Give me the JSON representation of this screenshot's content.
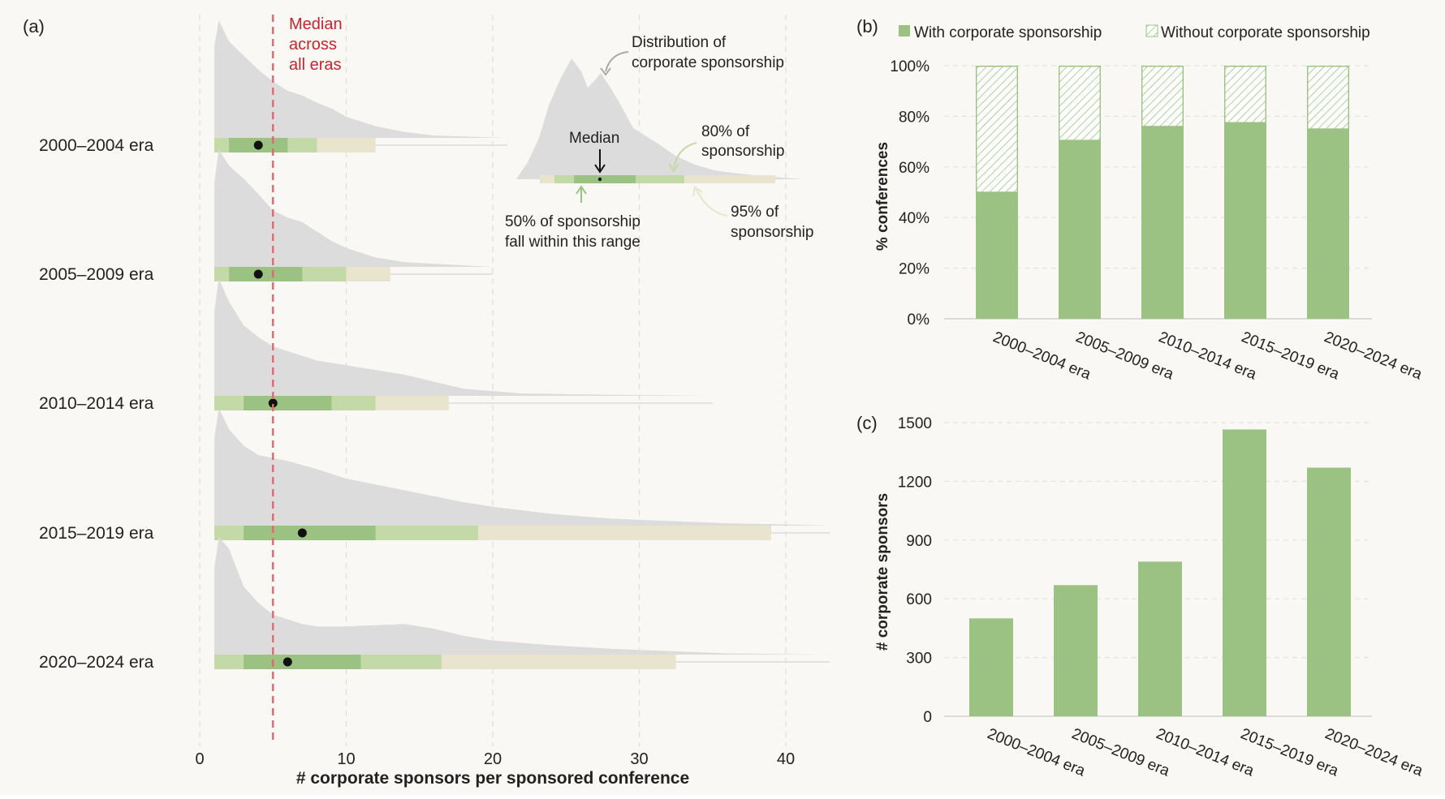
{
  "colors": {
    "background": "#f9f8f5",
    "range50": "#9cc283",
    "range80": "#c3d9a8",
    "range95": "#e9e4cd",
    "density": "#dcdcdc",
    "median_line": "#e8666b",
    "median_text": "#c8242b",
    "bar": "#9cc283",
    "hatch": "#9cc283"
  },
  "chart_data": [
    {
      "panel": "(a)",
      "type": "area",
      "xlabel": "# corporate sponsors per sponsored conference",
      "ylabel": "",
      "xlim": [
        0,
        42
      ],
      "xticks": [
        "0",
        "10",
        "20",
        "30",
        "40"
      ],
      "grid": "vertical dashed",
      "median_line": {
        "x": 5,
        "label_lines": [
          "Median",
          "across",
          "all eras"
        ]
      },
      "legend_inset": {
        "distribution_label": [
          "Distribution of",
          "corporate sponsorship"
        ],
        "median_label": "Median",
        "range80_label": [
          "80% of",
          "sponsorship"
        ],
        "range50_label": [
          "50% of sponsorship",
          "fall within this range"
        ],
        "range95_label": [
          "95% of",
          "sponsorship"
        ]
      },
      "series": [
        {
          "name": "2000–2004 era",
          "median": 4,
          "range50": [
            2,
            6
          ],
          "range80": [
            1,
            8
          ],
          "range95": [
            1,
            12
          ],
          "density_x": [
            1,
            1.3,
            2,
            3,
            4,
            5,
            6,
            7,
            8,
            9,
            10,
            12,
            14,
            16,
            21
          ],
          "density_y": [
            0.78,
            1.0,
            0.82,
            0.7,
            0.58,
            0.48,
            0.4,
            0.36,
            0.3,
            0.25,
            0.18,
            0.1,
            0.05,
            0.02,
            0.0
          ]
        },
        {
          "name": "2005–2009 era",
          "median": 4,
          "range50": [
            2,
            7
          ],
          "range80": [
            1,
            10
          ],
          "range95": [
            1,
            13
          ],
          "density_x": [
            1,
            1.3,
            2,
            3,
            4,
            5,
            6,
            7,
            8,
            9,
            10,
            12,
            14,
            17,
            20
          ],
          "density_y": [
            0.72,
            1.0,
            0.86,
            0.75,
            0.62,
            0.48,
            0.42,
            0.38,
            0.3,
            0.22,
            0.16,
            0.08,
            0.04,
            0.02,
            0.0
          ]
        },
        {
          "name": "2010–2014 era",
          "median": 5,
          "range50": [
            3,
            9
          ],
          "range80": [
            1,
            12
          ],
          "range95": [
            1,
            17
          ],
          "density_x": [
            1,
            1.3,
            2,
            3,
            4,
            5,
            6,
            7,
            8,
            9,
            10,
            12,
            14,
            16,
            18,
            22,
            28,
            35
          ],
          "density_y": [
            0.72,
            1.0,
            0.8,
            0.6,
            0.5,
            0.42,
            0.38,
            0.34,
            0.3,
            0.28,
            0.26,
            0.22,
            0.18,
            0.12,
            0.06,
            0.02,
            0.01,
            0.0
          ]
        },
        {
          "name": "2015–2019 era",
          "median": 7,
          "range50": [
            3,
            12
          ],
          "range80": [
            1,
            19
          ],
          "range95": [
            1,
            39
          ],
          "density_x": [
            1,
            1.3,
            2,
            3,
            4,
            6,
            8,
            10,
            12,
            14,
            16,
            18,
            20,
            24,
            28,
            32,
            36,
            40,
            43
          ],
          "density_y": [
            0.75,
            1.0,
            0.82,
            0.68,
            0.6,
            0.55,
            0.48,
            0.4,
            0.35,
            0.3,
            0.25,
            0.2,
            0.16,
            0.1,
            0.06,
            0.04,
            0.02,
            0.01,
            0.0
          ]
        },
        {
          "name": "2020–2024 era",
          "median": 6,
          "range50": [
            3,
            11
          ],
          "range80": [
            1,
            16.5
          ],
          "range95": [
            1,
            32.5
          ],
          "density_x": [
            1,
            1.3,
            2,
            3,
            4,
            5,
            6,
            7,
            8,
            10,
            12,
            14,
            16,
            18,
            20,
            24,
            28,
            32,
            36,
            43
          ],
          "density_y": [
            0.74,
            1.0,
            0.9,
            0.58,
            0.44,
            0.34,
            0.3,
            0.26,
            0.24,
            0.24,
            0.25,
            0.26,
            0.22,
            0.16,
            0.12,
            0.08,
            0.05,
            0.03,
            0.01,
            0.0
          ]
        }
      ]
    },
    {
      "panel": "(b)",
      "type": "bar",
      "stacked": true,
      "categories": [
        "2000–2004 era",
        "2005–2009 era",
        "2010–2014 era",
        "2015–2019 era",
        "2020–2024 era"
      ],
      "series": [
        {
          "name": "With corporate sponsorship",
          "values": [
            50,
            70.5,
            76,
            77.5,
            75
          ]
        },
        {
          "name": "Without corporate sponsorship",
          "values": [
            50,
            29.5,
            24,
            22.5,
            25
          ]
        }
      ],
      "ylabel": "% conferences",
      "ylim": [
        0,
        100
      ],
      "yticks": [
        "0%",
        "20%",
        "40%",
        "60%",
        "80%",
        "100%"
      ],
      "legend": "top"
    },
    {
      "panel": "(c)",
      "type": "bar",
      "categories": [
        "2000–2004 era",
        "2005–2009 era",
        "2010–2014 era",
        "2015–2019 era",
        "2020–2024 era"
      ],
      "values": [
        500,
        670,
        790,
        1465,
        1270
      ],
      "ylabel": "# corporate sponsors",
      "ylim": [
        0,
        1500
      ],
      "yticks": [
        "0",
        "300",
        "600",
        "900",
        "1200",
        "1500"
      ]
    }
  ]
}
